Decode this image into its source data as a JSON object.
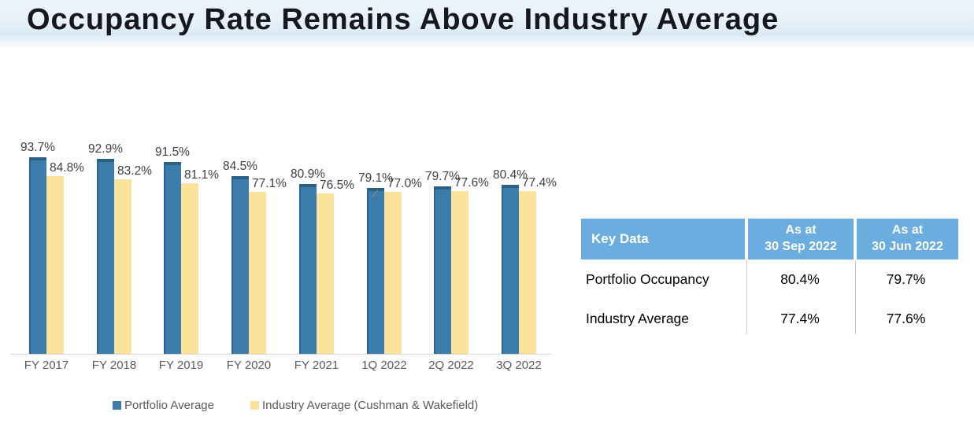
{
  "page": {
    "title": "Occupancy Rate Remains Above Industry Average"
  },
  "chart_data": {
    "type": "bar",
    "categories": [
      "FY 2017",
      "FY 2018",
      "FY 2019",
      "FY 2020",
      "FY 2021",
      "1Q 2022",
      "2Q 2022",
      "3Q 2022"
    ],
    "series": [
      {
        "name": "Portfolio Average",
        "color": "#3d7dab",
        "edge_color": "#2b6185",
        "values": [
          93.7,
          92.9,
          91.5,
          84.5,
          80.9,
          79.1,
          79.7,
          80.4
        ]
      },
      {
        "name": "Industry Average (Cushman & Wakefield)",
        "color": "#fbe39c",
        "values": [
          84.8,
          83.2,
          81.1,
          77.1,
          76.5,
          77.0,
          77.6,
          77.4
        ]
      }
    ],
    "value_label_format": "0.0%",
    "ylim": [
      0,
      100
    ],
    "grid": false,
    "legend_position": "bottom",
    "axis_line_color": "#d9d9d9"
  },
  "key_data_table": {
    "header_bg": "#6badde",
    "header_text_color": "#ffffff",
    "headers": [
      "Key Data",
      "As at\n30 Sep 2022",
      "As at\n30 Jun 2022"
    ],
    "rows": [
      {
        "label": "Portfolio Occupancy",
        "values": [
          "80.4%",
          "79.7%"
        ]
      },
      {
        "label": "Industry Average",
        "values": [
          "77.4%",
          "77.6%"
        ]
      }
    ]
  }
}
